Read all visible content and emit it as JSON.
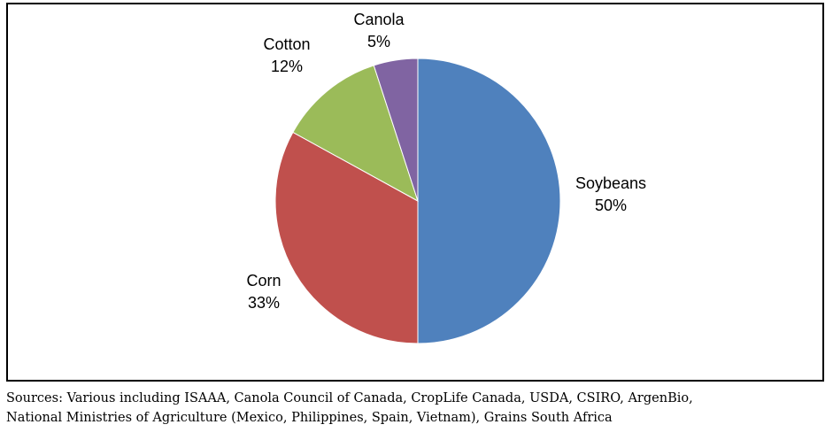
{
  "chart_data": {
    "type": "pie",
    "title": "",
    "slices": [
      {
        "label": "Soybeans",
        "value": 50,
        "value_label": "50%",
        "color": "#4F81BD"
      },
      {
        "label": "Corn",
        "value": 33,
        "value_label": "33%",
        "color": "#C0504D"
      },
      {
        "label": "Cotton",
        "value": 12,
        "value_label": "12%",
        "color": "#9BBB59"
      },
      {
        "label": "Canola",
        "value": 5,
        "value_label": "5%",
        "color": "#8064A2"
      }
    ],
    "start": "12 o'clock",
    "direction": "clockwise",
    "legend": "none"
  },
  "footer": {
    "sources_line1": "Sources: Various including ISAAA, Canola Council of Canada, CropLife Canada, USDA, CSIRO, ArgenBio,",
    "sources_line2": "National Ministries of Agriculture (Mexico, Philippines, Spain, Vietnam), Grains South Africa"
  }
}
